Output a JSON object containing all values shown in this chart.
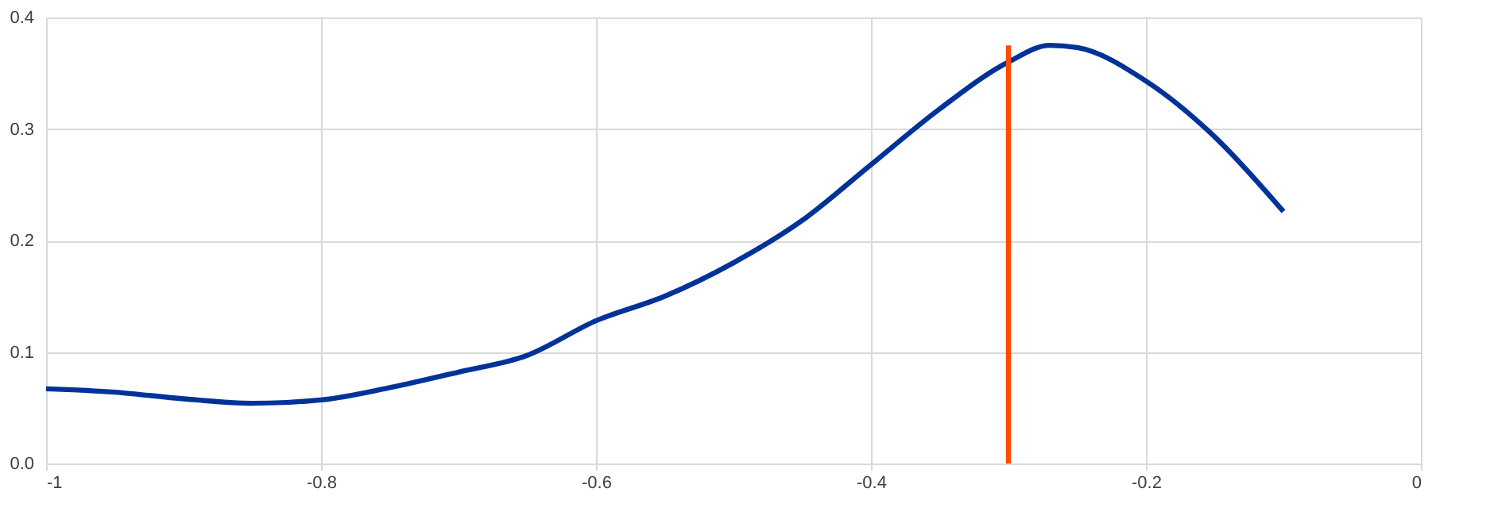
{
  "chart_data": {
    "type": "line",
    "series": [
      {
        "color": "#003299",
        "x": [
          -1,
          -0.95,
          -0.9,
          -0.85,
          -0.8,
          -0.75,
          -0.7,
          -0.65,
          -0.6,
          -0.55,
          -0.5,
          -0.45,
          -0.4,
          -0.35,
          -0.3,
          -0.27,
          -0.25,
          -0.2,
          -0.15,
          -0.1
        ],
        "values": [
          0.067,
          0.064,
          0.058,
          0.054,
          0.057,
          0.068,
          0.082,
          0.097,
          0.128,
          0.15,
          0.18,
          0.218,
          0.268,
          0.318,
          0.36,
          0.375,
          0.373,
          0.343,
          0.293,
          0.226
        ]
      },
      {
        "color": "#ff4b00",
        "x": [
          -0.3,
          -0.3
        ],
        "values": [
          0,
          0.375
        ]
      }
    ],
    "xlim": [
      -1,
      0
    ],
    "xticks": [
      -1,
      -0.8,
      -0.6,
      -0.4,
      -0.2,
      0
    ],
    "ylim": [
      0,
      0.4
    ],
    "yticks": [
      {
        "value": 0,
        "label": "0.0"
      },
      {
        "value": 0.1,
        "label": "0.1"
      },
      {
        "value": 0.2,
        "label": "0.2"
      },
      {
        "value": 0.3,
        "label": "0.3"
      },
      {
        "value": 0.4,
        "label": "0.4"
      }
    ],
    "grid": true
  }
}
